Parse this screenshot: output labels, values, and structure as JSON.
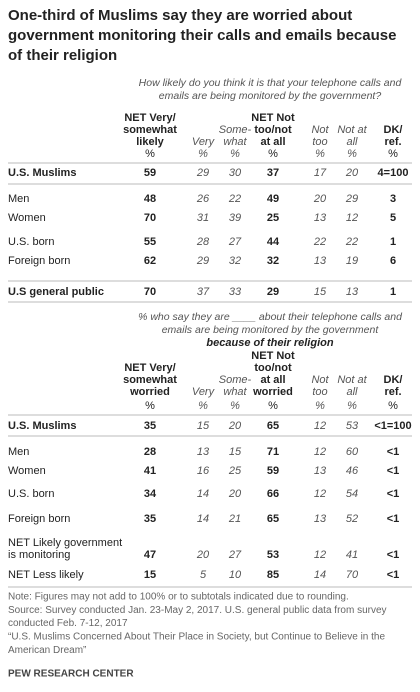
{
  "title": [
    "One-third of Muslims say they are worried about",
    "government monitoring their calls and emails because",
    "of their religion"
  ],
  "tables": [
    {
      "question": [
        "How likely do you think it is that your telephone calls and",
        "emails are being monitored by the government?"
      ],
      "columns": [
        [
          "NET Very/",
          "somewhat",
          "likely"
        ],
        [
          "Very"
        ],
        [
          "Some-",
          "what"
        ],
        [
          "NET Not",
          "too/not",
          "at all"
        ],
        [
          "Not",
          "too"
        ],
        [
          "Not at",
          "all"
        ],
        [
          "DK/",
          "ref."
        ]
      ],
      "units": [
        "%",
        "%",
        "%",
        "%",
        "%",
        "%",
        "%"
      ],
      "rows": [
        {
          "label": "U.S. Muslims",
          "values": [
            59,
            29,
            30,
            37,
            17,
            20,
            "4=100"
          ]
        },
        {
          "label": "Men",
          "values": [
            48,
            26,
            22,
            49,
            20,
            29,
            3
          ]
        },
        {
          "label": "Women",
          "values": [
            70,
            31,
            39,
            25,
            13,
            12,
            5
          ]
        },
        {
          "label": "U.S. born",
          "values": [
            55,
            28,
            27,
            44,
            22,
            22,
            1
          ]
        },
        {
          "label": "Foreign born",
          "values": [
            62,
            29,
            32,
            32,
            13,
            19,
            6
          ]
        },
        {
          "label": "U.S general public",
          "values": [
            70,
            37,
            33,
            29,
            15,
            13,
            1
          ]
        }
      ]
    },
    {
      "question": [
        "% who say they are ____ about their telephone calls and",
        "emails are being monitored by the government"
      ],
      "question_emphasis": "because of their religion",
      "columns": [
        [
          "NET Very/",
          "somewhat",
          "worried"
        ],
        [
          "Very"
        ],
        [
          "Some-",
          "what"
        ],
        [
          "NET Not",
          "too/not",
          "at all",
          "worried"
        ],
        [
          "Not",
          "too"
        ],
        [
          "Not at",
          "all"
        ],
        [
          "DK/",
          "ref."
        ]
      ],
      "units": [
        "%",
        "%",
        "%",
        "%",
        "%",
        "%",
        "%"
      ],
      "rows": [
        {
          "label": "U.S. Muslims",
          "values": [
            35,
            15,
            20,
            65,
            12,
            53,
            "<1=100"
          ]
        },
        {
          "label": "Men",
          "values": [
            28,
            13,
            15,
            71,
            12,
            60,
            "<1"
          ]
        },
        {
          "label": "Women",
          "values": [
            41,
            16,
            25,
            59,
            13,
            46,
            "<1"
          ]
        },
        {
          "label": "U.S. born",
          "values": [
            34,
            14,
            20,
            66,
            12,
            54,
            "<1"
          ]
        },
        {
          "label": "Foreign born",
          "values": [
            35,
            14,
            21,
            65,
            13,
            52,
            "<1"
          ]
        },
        {
          "label": [
            "NET Likely government",
            "is monitoring"
          ],
          "values": [
            47,
            20,
            27,
            53,
            12,
            41,
            "<1"
          ]
        },
        {
          "label": "NET Less likely",
          "values": [
            15,
            5,
            10,
            85,
            14,
            70,
            "<1"
          ]
        }
      ]
    }
  ],
  "notes": [
    "Note: Figures may not add to 100% or to subtotals indicated due to rounding.",
    "Source: Survey conducted Jan. 23-May 2, 2017. U.S. general public data from survey",
    "conducted Feb. 7-12, 2017",
    "“U.S. Muslims Concerned About Their Place in Society, but Continue to Believe in the",
    "American Dream”"
  ],
  "source_org": "PEW RESEARCH CENTER"
}
